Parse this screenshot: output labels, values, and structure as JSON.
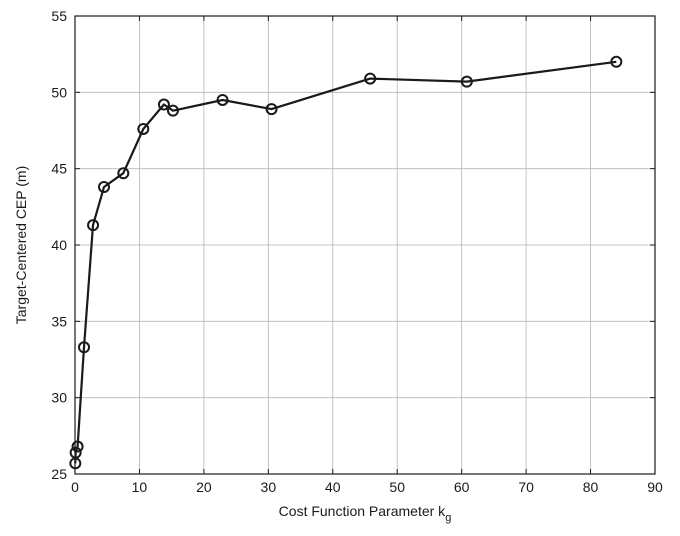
{
  "chart_data": {
    "type": "line",
    "title": "",
    "xlabel_main": "Cost Function Parameter k",
    "xlabel_sub": "g",
    "ylabel": "Target-Centered CEP (m)",
    "xlim": [
      0,
      90
    ],
    "ylim": [
      25,
      55
    ],
    "xticks": [
      0,
      10,
      20,
      30,
      40,
      50,
      60,
      70,
      80,
      90
    ],
    "yticks": [
      25,
      30,
      35,
      40,
      45,
      50,
      55
    ],
    "grid": true,
    "marker": "circle",
    "line_color": "#1a1a1a",
    "series": [
      {
        "points": [
          [
            0.05,
            25.7
          ],
          [
            0.1,
            26.4
          ],
          [
            0.4,
            26.8
          ],
          [
            1.4,
            33.3
          ],
          [
            2.8,
            41.3
          ],
          [
            4.5,
            43.8
          ],
          [
            7.5,
            44.7
          ],
          [
            10.6,
            47.6
          ],
          [
            13.8,
            49.2
          ],
          [
            15.2,
            48.8
          ],
          [
            22.9,
            49.5
          ],
          [
            30.5,
            48.9
          ],
          [
            45.8,
            50.9
          ],
          [
            60.8,
            50.7
          ],
          [
            84.0,
            52.0
          ]
        ]
      }
    ]
  }
}
